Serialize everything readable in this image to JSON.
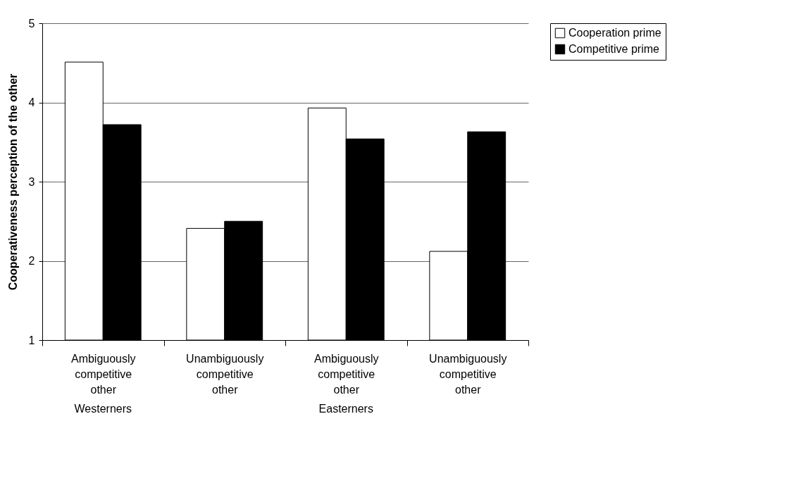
{
  "chart_data": {
    "type": "bar",
    "ylabel": "Cooperativeness perception of the other",
    "categories": [
      "Ambiguously competitive other",
      "Unambiguously competitive other",
      "Ambiguously competitive other",
      "Unambiguously competitive other"
    ],
    "series": [
      {
        "name": "Cooperation prime",
        "color": "#ffffff",
        "values": [
          4.51,
          2.41,
          3.93,
          2.12
        ]
      },
      {
        "name": "Competitive prime",
        "color": "#000000",
        "values": [
          3.72,
          2.5,
          3.54,
          3.63
        ]
      }
    ],
    "ylim": [
      1,
      5
    ],
    "yticks": [
      1,
      2,
      3,
      4,
      5
    ],
    "grid": "y",
    "legend": "right",
    "annotations": [
      "Westerners",
      "Easterners"
    ]
  }
}
